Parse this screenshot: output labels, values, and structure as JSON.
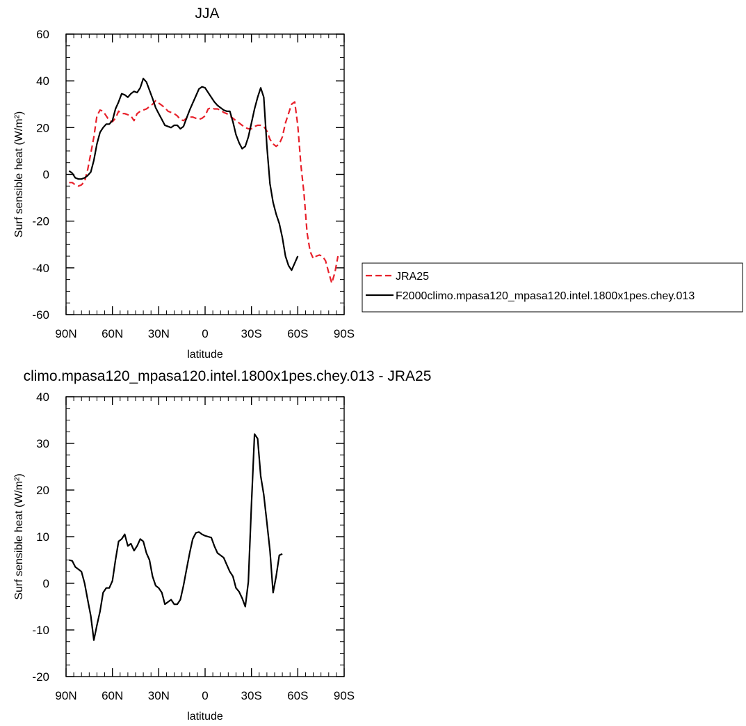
{
  "chart_data": [
    {
      "type": "line",
      "title": "JJA",
      "xlabel": "latitude",
      "ylabel": "Surf sensible heat (W/m²)",
      "ylim": [
        -60,
        60
      ],
      "xlim": [
        90,
        -90
      ],
      "x_ticks": [
        {
          "value": 90,
          "label": "90N"
        },
        {
          "value": 60,
          "label": "60N"
        },
        {
          "value": 30,
          "label": "30N"
        },
        {
          "value": 0,
          "label": "0"
        },
        {
          "value": -30,
          "label": "30S"
        },
        {
          "value": -60,
          "label": "60S"
        },
        {
          "value": -90,
          "label": "90S"
        }
      ],
      "y_ticks": [
        {
          "value": 60,
          "label": "60"
        },
        {
          "value": 40,
          "label": "40"
        },
        {
          "value": 20,
          "label": "20"
        },
        {
          "value": 0,
          "label": "0"
        },
        {
          "value": -20,
          "label": "-20"
        },
        {
          "value": -40,
          "label": "-40"
        },
        {
          "value": -60,
          "label": "-60"
        }
      ],
      "legend": "right",
      "series": [
        {
          "name": "JRA25",
          "color": "#e8202a",
          "dash": "dashed",
          "points": [
            [
              88,
              -3.5
            ],
            [
              86,
              -3.5
            ],
            [
              84,
              -4.5
            ],
            [
              82,
              -5
            ],
            [
              80,
              -4.5
            ],
            [
              78,
              -3
            ],
            [
              76,
              2
            ],
            [
              74,
              9
            ],
            [
              72,
              16
            ],
            [
              70,
              25
            ],
            [
              68,
              27.5
            ],
            [
              66,
              27
            ],
            [
              64,
              25
            ],
            [
              62,
              23
            ],
            [
              60,
              22.5
            ],
            [
              58,
              24
            ],
            [
              56,
              27
            ],
            [
              54,
              26
            ],
            [
              52,
              26
            ],
            [
              50,
              25.5
            ],
            [
              48,
              25
            ],
            [
              46,
              23
            ],
            [
              44,
              26
            ],
            [
              42,
              27
            ],
            [
              40,
              27.5
            ],
            [
              38,
              28
            ],
            [
              36,
              29
            ],
            [
              34,
              30
            ],
            [
              32,
              31.5
            ],
            [
              30,
              30.5
            ],
            [
              28,
              29.5
            ],
            [
              26,
              28.5
            ],
            [
              24,
              27
            ],
            [
              22,
              26.5
            ],
            [
              20,
              26
            ],
            [
              18,
              25
            ],
            [
              16,
              23.5
            ],
            [
              14,
              23
            ],
            [
              12,
              24
            ],
            [
              10,
              24.5
            ],
            [
              8,
              24.5
            ],
            [
              6,
              24
            ],
            [
              4,
              23.5
            ],
            [
              2,
              24
            ],
            [
              0,
              25
            ],
            [
              -2,
              28
            ],
            [
              -4,
              28.5
            ],
            [
              -6,
              28
            ],
            [
              -8,
              28
            ],
            [
              -10,
              27.5
            ],
            [
              -12,
              26.5
            ],
            [
              -14,
              26
            ],
            [
              -16,
              25
            ],
            [
              -18,
              24
            ],
            [
              -20,
              23
            ],
            [
              -22,
              22
            ],
            [
              -24,
              21
            ],
            [
              -26,
              20
            ],
            [
              -28,
              19.5
            ],
            [
              -30,
              19.5
            ],
            [
              -32,
              20.5
            ],
            [
              -34,
              21
            ],
            [
              -36,
              21
            ],
            [
              -38,
              20.5
            ],
            [
              -40,
              18.5
            ],
            [
              -42,
              15
            ],
            [
              -44,
              13
            ],
            [
              -46,
              12
            ],
            [
              -48,
              13
            ],
            [
              -50,
              16
            ],
            [
              -52,
              22
            ],
            [
              -54,
              26
            ],
            [
              -56,
              30
            ],
            [
              -58,
              31
            ],
            [
              -60,
              21
            ],
            [
              -62,
              4
            ],
            [
              -64,
              -8
            ],
            [
              -66,
              -25
            ],
            [
              -68,
              -33
            ],
            [
              -70,
              -36
            ],
            [
              -72,
              -35
            ],
            [
              -74,
              -34.5
            ],
            [
              -76,
              -35
            ],
            [
              -78,
              -37
            ],
            [
              -80,
              -42
            ],
            [
              -82,
              -46.5
            ],
            [
              -84,
              -42
            ],
            [
              -86,
              -35
            ]
          ]
        },
        {
          "name": "F2000climo.mpasa120_mpasa120.intel.1800x1pes.chey.013",
          "color": "#000000",
          "dash": "solid",
          "points": [
            [
              88,
              1.5
            ],
            [
              86,
              0.5
            ],
            [
              84,
              -1.5
            ],
            [
              82,
              -2
            ],
            [
              80,
              -2
            ],
            [
              78,
              -1.5
            ],
            [
              76,
              -0.5
            ],
            [
              74,
              1
            ],
            [
              72,
              6
            ],
            [
              70,
              13
            ],
            [
              68,
              18
            ],
            [
              66,
              20
            ],
            [
              64,
              21.5
            ],
            [
              62,
              21.5
            ],
            [
              60,
              23
            ],
            [
              58,
              28
            ],
            [
              56,
              31
            ],
            [
              54,
              34.5
            ],
            [
              52,
              34
            ],
            [
              50,
              33
            ],
            [
              48,
              34.5
            ],
            [
              46,
              35.5
            ],
            [
              44,
              35
            ],
            [
              42,
              37
            ],
            [
              40,
              41
            ],
            [
              38,
              39.5
            ],
            [
              36,
              36
            ],
            [
              34,
              32.5
            ],
            [
              32,
              28.5
            ],
            [
              30,
              26
            ],
            [
              28,
              23.5
            ],
            [
              26,
              21
            ],
            [
              24,
              20.5
            ],
            [
              22,
              20
            ],
            [
              20,
              21
            ],
            [
              18,
              21
            ],
            [
              16,
              19.5
            ],
            [
              14,
              20.5
            ],
            [
              12,
              24
            ],
            [
              10,
              27.5
            ],
            [
              8,
              30.5
            ],
            [
              6,
              33.5
            ],
            [
              4,
              36.5
            ],
            [
              2,
              37.5
            ],
            [
              0,
              37
            ],
            [
              -2,
              35
            ],
            [
              -4,
              33
            ],
            [
              -6,
              31
            ],
            [
              -8,
              29.5
            ],
            [
              -10,
              28.5
            ],
            [
              -12,
              27.5
            ],
            [
              -14,
              27
            ],
            [
              -16,
              27
            ],
            [
              -18,
              22.5
            ],
            [
              -20,
              17
            ],
            [
              -22,
              13.5
            ],
            [
              -24,
              11
            ],
            [
              -26,
              12
            ],
            [
              -28,
              16
            ],
            [
              -30,
              22
            ],
            [
              -32,
              28
            ],
            [
              -34,
              33
            ],
            [
              -36,
              37
            ],
            [
              -38,
              33
            ],
            [
              -40,
              12
            ],
            [
              -42,
              -4
            ],
            [
              -44,
              -12
            ],
            [
              -46,
              -17
            ],
            [
              -48,
              -21
            ],
            [
              -50,
              -27
            ],
            [
              -52,
              -35
            ],
            [
              -54,
              -39
            ],
            [
              -56,
              -41
            ],
            [
              -58,
              -38
            ],
            [
              -60,
              -35
            ]
          ]
        }
      ]
    },
    {
      "type": "line",
      "title": "climo.mpasa120_mpasa120.intel.1800x1pes.chey.013 - JRA25",
      "xlabel": "latitude",
      "ylabel": "Surf sensible heat (W/m²)",
      "ylim": [
        -20,
        40
      ],
      "xlim": [
        90,
        -90
      ],
      "x_ticks": [
        {
          "value": 90,
          "label": "90N"
        },
        {
          "value": 60,
          "label": "60N"
        },
        {
          "value": 30,
          "label": "30N"
        },
        {
          "value": 0,
          "label": "0"
        },
        {
          "value": -30,
          "label": "30S"
        },
        {
          "value": -60,
          "label": "60S"
        },
        {
          "value": -90,
          "label": "90S"
        }
      ],
      "y_ticks": [
        {
          "value": 40,
          "label": "40"
        },
        {
          "value": 30,
          "label": "30"
        },
        {
          "value": 20,
          "label": "20"
        },
        {
          "value": 10,
          "label": "10"
        },
        {
          "value": 0,
          "label": "0"
        },
        {
          "value": -10,
          "label": "-10"
        },
        {
          "value": -20,
          "label": "-20"
        }
      ],
      "series": [
        {
          "color": "#000000",
          "dash": "solid",
          "points": [
            [
              88,
              5
            ],
            [
              86,
              4.8
            ],
            [
              84,
              3.5
            ],
            [
              82,
              3
            ],
            [
              80,
              2.5
            ],
            [
              78,
              0
            ],
            [
              76,
              -3.5
            ],
            [
              74,
              -7
            ],
            [
              72,
              -12.2
            ],
            [
              70,
              -9
            ],
            [
              68,
              -6
            ],
            [
              66,
              -2
            ],
            [
              64,
              -1
            ],
            [
              62,
              -1
            ],
            [
              60,
              0.5
            ],
            [
              58,
              5
            ],
            [
              56,
              9
            ],
            [
              54,
              9.5
            ],
            [
              52,
              10.5
            ],
            [
              50,
              8
            ],
            [
              48,
              8.5
            ],
            [
              46,
              7
            ],
            [
              44,
              8
            ],
            [
              42,
              9.5
            ],
            [
              40,
              9
            ],
            [
              38,
              6.5
            ],
            [
              36,
              5
            ],
            [
              34,
              1.5
            ],
            [
              32,
              -0.5
            ],
            [
              30,
              -1
            ],
            [
              28,
              -2
            ],
            [
              26,
              -4.5
            ],
            [
              24,
              -4
            ],
            [
              22,
              -3.5
            ],
            [
              20,
              -4.5
            ],
            [
              18,
              -4.5
            ],
            [
              16,
              -3.5
            ],
            [
              14,
              -0.5
            ],
            [
              12,
              3
            ],
            [
              10,
              6.5
            ],
            [
              8,
              9.5
            ],
            [
              6,
              10.8
            ],
            [
              4,
              11
            ],
            [
              2,
              10.5
            ],
            [
              0,
              10.2
            ],
            [
              -2,
              10
            ],
            [
              -4,
              9.8
            ],
            [
              -6,
              8
            ],
            [
              -8,
              6.5
            ],
            [
              -10,
              6
            ],
            [
              -12,
              5.5
            ],
            [
              -14,
              4
            ],
            [
              -16,
              2.5
            ],
            [
              -18,
              1.5
            ],
            [
              -20,
              -1
            ],
            [
              -22,
              -1.8
            ],
            [
              -24,
              -3.2
            ],
            [
              -26,
              -5
            ],
            [
              -28,
              0.3
            ],
            [
              -30,
              17
            ],
            [
              -32,
              32
            ],
            [
              -34,
              31
            ],
            [
              -36,
              23
            ],
            [
              -38,
              19
            ],
            [
              -40,
              13
            ],
            [
              -42,
              7
            ],
            [
              -44,
              -2
            ],
            [
              -46,
              1.5
            ],
            [
              -48,
              6
            ],
            [
              -50,
              6.3
            ]
          ]
        }
      ]
    }
  ]
}
